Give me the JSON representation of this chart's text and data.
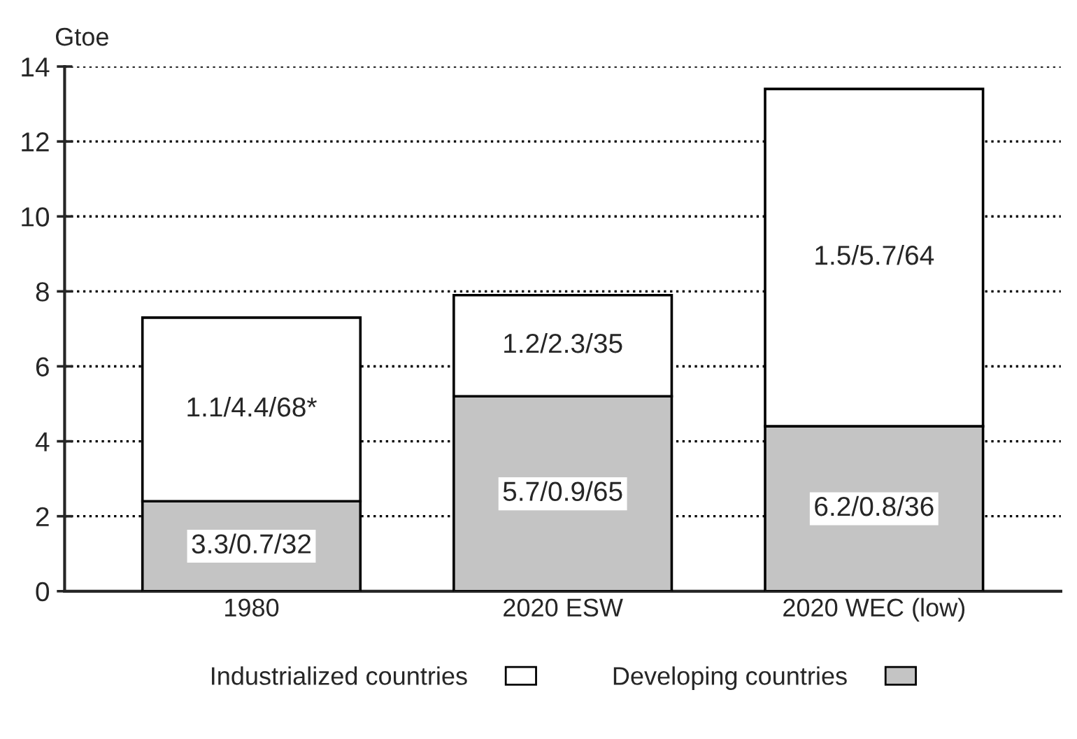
{
  "chart_data": {
    "type": "bar",
    "stacked": true,
    "ylabel": "Gtoe",
    "categories": [
      "1980",
      "2020 ESW",
      "2020 WEC (low)"
    ],
    "series": [
      {
        "name": "Developing countries",
        "color": "#c4c4c4",
        "values": [
          2.4,
          5.2,
          4.4
        ],
        "value_labels": [
          "3.3/0.7/32",
          "5.7/0.9/65",
          "6.2/0.8/36"
        ]
      },
      {
        "name": "Industrialized countries",
        "color": "#ffffff",
        "values": [
          4.9,
          2.7,
          9.0
        ],
        "value_labels": [
          "1.1/4.4/68*",
          "1.2/2.3/35",
          "1.5/5.7/64"
        ]
      }
    ],
    "ylim": [
      0,
      14
    ],
    "yticks": [
      0,
      2,
      4,
      6,
      8,
      10,
      12,
      14
    ],
    "grid": "y",
    "legend": "bottom",
    "line_style": "dotted"
  }
}
